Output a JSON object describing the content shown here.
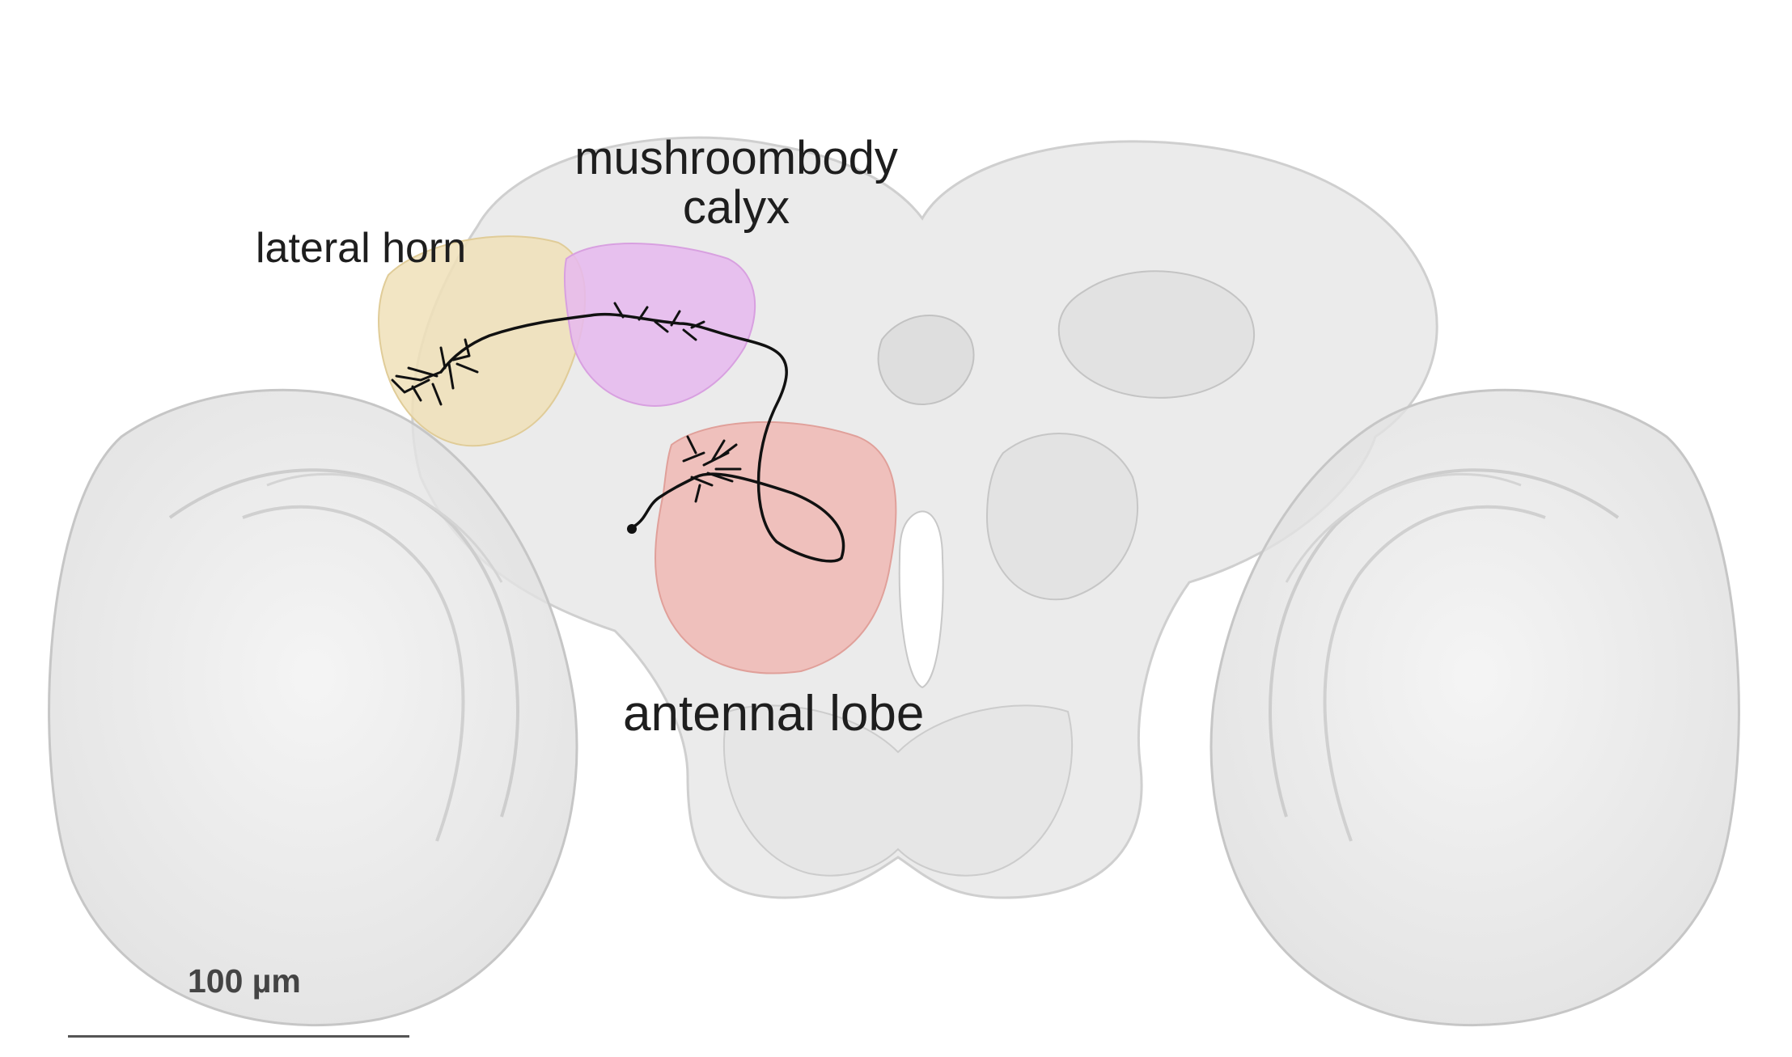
{
  "labels": {
    "mushroom_body_line1": "mushroombody",
    "mushroom_body_line2": "calyx",
    "lateral_horn": "lateral horn",
    "antennal_lobe": "antennal lobe"
  },
  "scale_bar": {
    "label": "100 µm"
  },
  "colors": {
    "brain_fill": "#e6e6e6",
    "brain_outline": "#c4c4c4",
    "lateral_horn": "#f0e1b8",
    "mushroom_body_calyx": "#e6b8ee",
    "antennal_lobe": "#f0b8b4",
    "neuron": "#111111"
  }
}
